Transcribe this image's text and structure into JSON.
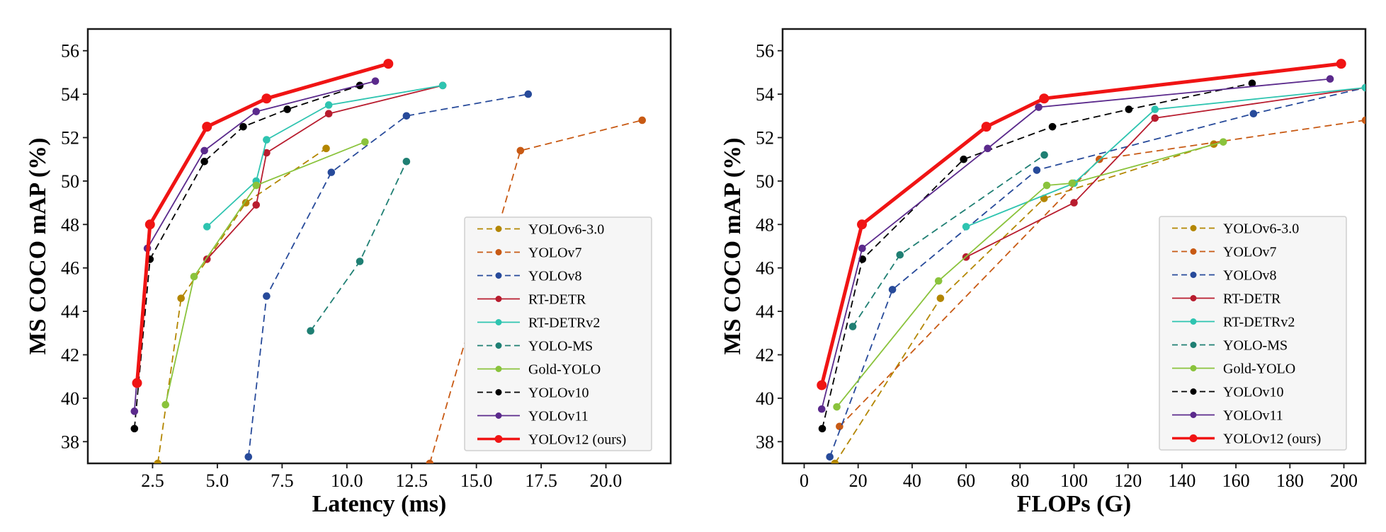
{
  "chart_data": [
    {
      "type": "line",
      "xlabel": "Latency (ms)",
      "ylabel": "MS COCO mAP (%)",
      "xlim": [
        0,
        22.5
      ],
      "ylim": [
        37,
        57
      ],
      "xticks": [
        2.5,
        5,
        7.5,
        10,
        12.5,
        15,
        17.5,
        20
      ],
      "xtick_labels": [
        "2.5",
        "5.0",
        "7.5",
        "10.0",
        "12.5",
        "15.0",
        "17.5",
        "20.0"
      ],
      "yticks": [
        38,
        40,
        42,
        44,
        46,
        48,
        50,
        52,
        54,
        56
      ],
      "ytick_labels": [
        "38",
        "40",
        "42",
        "44",
        "46",
        "48",
        "50",
        "52",
        "54",
        "56"
      ],
      "legend_position": "lower-right",
      "series": [
        {
          "name": "YOLOv6-3.0",
          "color": "#b38600",
          "dashed": true,
          "points": [
            [
              2.7,
              37.0
            ],
            [
              3.6,
              44.6
            ],
            [
              6.1,
              49.0
            ],
            [
              9.2,
              51.5
            ]
          ]
        },
        {
          "name": "YOLOv7",
          "color": "#c85a14",
          "dashed": true,
          "points": [
            [
              13.2,
              37.0
            ],
            [
              16.7,
              51.4
            ],
            [
              21.4,
              52.8
            ]
          ]
        },
        {
          "name": "YOLOv8",
          "color": "#274a9a",
          "dashed": true,
          "points": [
            [
              6.2,
              37.3
            ],
            [
              6.9,
              44.7
            ],
            [
              9.4,
              50.4
            ],
            [
              12.3,
              53.0
            ],
            [
              17.0,
              54.0
            ]
          ]
        },
        {
          "name": "RT-DETR",
          "color": "#b81c2e",
          "dashed": false,
          "points": [
            [
              4.6,
              46.4
            ],
            [
              6.5,
              48.9
            ],
            [
              6.9,
              51.3
            ],
            [
              9.3,
              53.1
            ],
            [
              13.7,
              54.4
            ]
          ]
        },
        {
          "name": "RT-DETRv2",
          "color": "#2ec4b0",
          "dashed": false,
          "points": [
            [
              4.6,
              47.9
            ],
            [
              6.5,
              50.0
            ],
            [
              6.9,
              51.9
            ],
            [
              9.3,
              53.5
            ],
            [
              13.7,
              54.4
            ]
          ]
        },
        {
          "name": "YOLO-MS",
          "color": "#1f7f73",
          "dashed": true,
          "points": [
            [
              8.6,
              43.1
            ],
            [
              10.5,
              46.3
            ],
            [
              12.3,
              50.9
            ]
          ]
        },
        {
          "name": "Gold-YOLO",
          "color": "#8ac33c",
          "dashed": false,
          "points": [
            [
              3.0,
              39.7
            ],
            [
              4.1,
              45.6
            ],
            [
              6.5,
              49.8
            ],
            [
              10.7,
              51.8
            ]
          ]
        },
        {
          "name": "YOLOv10",
          "color": "#000000",
          "dashed": true,
          "points": [
            [
              1.8,
              38.6
            ],
            [
              2.4,
              46.4
            ],
            [
              4.5,
              50.9
            ],
            [
              6.0,
              52.5
            ],
            [
              7.7,
              53.3
            ],
            [
              10.5,
              54.4
            ]
          ]
        },
        {
          "name": "YOLOv11",
          "color": "#5b2a8c",
          "dashed": false,
          "points": [
            [
              1.8,
              39.4
            ],
            [
              2.3,
              46.9
            ],
            [
              4.5,
              51.4
            ],
            [
              6.5,
              53.2
            ],
            [
              11.1,
              54.6
            ]
          ]
        },
        {
          "name": "YOLOv12 (ours)",
          "color": "#f01414",
          "dashed": false,
          "bold": true,
          "points": [
            [
              1.9,
              40.7
            ],
            [
              2.4,
              48.0
            ],
            [
              4.6,
              52.5
            ],
            [
              6.9,
              53.8
            ],
            [
              11.6,
              55.4
            ]
          ]
        }
      ]
    },
    {
      "type": "line",
      "xlabel": "FLOPs (G)",
      "ylabel": "MS COCO mAP (%)",
      "xlim": [
        -8,
        208
      ],
      "ylim": [
        37,
        57
      ],
      "xticks": [
        0,
        20,
        40,
        60,
        80,
        100,
        120,
        140,
        160,
        180,
        200
      ],
      "xtick_labels": [
        "0",
        "20",
        "40",
        "60",
        "80",
        "100",
        "120",
        "140",
        "160",
        "180",
        "200"
      ],
      "yticks": [
        38,
        40,
        42,
        44,
        46,
        48,
        50,
        52,
        54,
        56
      ],
      "ytick_labels": [
        "38",
        "40",
        "42",
        "44",
        "46",
        "48",
        "50",
        "52",
        "54",
        "56"
      ],
      "legend_position": "lower-right",
      "series": [
        {
          "name": "YOLOv6-3.0",
          "color": "#b38600",
          "dashed": true,
          "points": [
            [
              11.4,
              37.0
            ],
            [
              50.5,
              44.6
            ],
            [
              88.9,
              49.2
            ],
            [
              151.8,
              51.7
            ]
          ]
        },
        {
          "name": "YOLOv7",
          "color": "#c85a14",
          "dashed": true,
          "points": [
            [
              13.1,
              38.7
            ],
            [
              109.4,
              51.0
            ],
            [
              208.0,
              52.8
            ]
          ]
        },
        {
          "name": "YOLOv8",
          "color": "#274a9a",
          "dashed": true,
          "points": [
            [
              9.5,
              37.3
            ],
            [
              32.7,
              45.0
            ],
            [
              86.2,
              50.5
            ],
            [
              166.5,
              53.1
            ],
            [
              208.0,
              54.3
            ]
          ]
        },
        {
          "name": "RT-DETR",
          "color": "#b81c2e",
          "dashed": false,
          "points": [
            [
              60.0,
              46.5
            ],
            [
              100.0,
              49.0
            ],
            [
              130.0,
              52.9
            ],
            [
              208.0,
              54.3
            ]
          ]
        },
        {
          "name": "RT-DETRv2",
          "color": "#2ec4b0",
          "dashed": false,
          "points": [
            [
              60.0,
              47.9
            ],
            [
              100.0,
              49.9
            ],
            [
              130.0,
              53.3
            ],
            [
              208.0,
              54.3
            ]
          ]
        },
        {
          "name": "YOLO-MS",
          "color": "#1f7f73",
          "dashed": true,
          "points": [
            [
              18.0,
              43.3
            ],
            [
              35.5,
              46.6
            ],
            [
              89.0,
              51.2
            ]
          ]
        },
        {
          "name": "Gold-YOLO",
          "color": "#8ac33c",
          "dashed": false,
          "points": [
            [
              12.1,
              39.6
            ],
            [
              49.8,
              45.4
            ],
            [
              89.9,
              49.8
            ],
            [
              99.3,
              49.9
            ],
            [
              155.3,
              51.8
            ]
          ]
        },
        {
          "name": "YOLOv10",
          "color": "#000000",
          "dashed": true,
          "points": [
            [
              6.7,
              38.6
            ],
            [
              21.6,
              46.4
            ],
            [
              59.1,
              51.0
            ],
            [
              92.0,
              52.5
            ],
            [
              120.3,
              53.3
            ],
            [
              166.0,
              54.5
            ]
          ]
        },
        {
          "name": "YOLOv11",
          "color": "#5b2a8c",
          "dashed": false,
          "points": [
            [
              6.5,
              39.5
            ],
            [
              21.5,
              46.9
            ],
            [
              68.0,
              51.5
            ],
            [
              86.9,
              53.4
            ],
            [
              194.9,
              54.7
            ]
          ]
        },
        {
          "name": "YOLOv12 (ours)",
          "color": "#f01414",
          "dashed": false,
          "bold": true,
          "points": [
            [
              6.5,
              40.6
            ],
            [
              21.4,
              48.0
            ],
            [
              67.5,
              52.5
            ],
            [
              88.9,
              53.8
            ],
            [
              199.0,
              55.4
            ]
          ]
        }
      ]
    }
  ]
}
